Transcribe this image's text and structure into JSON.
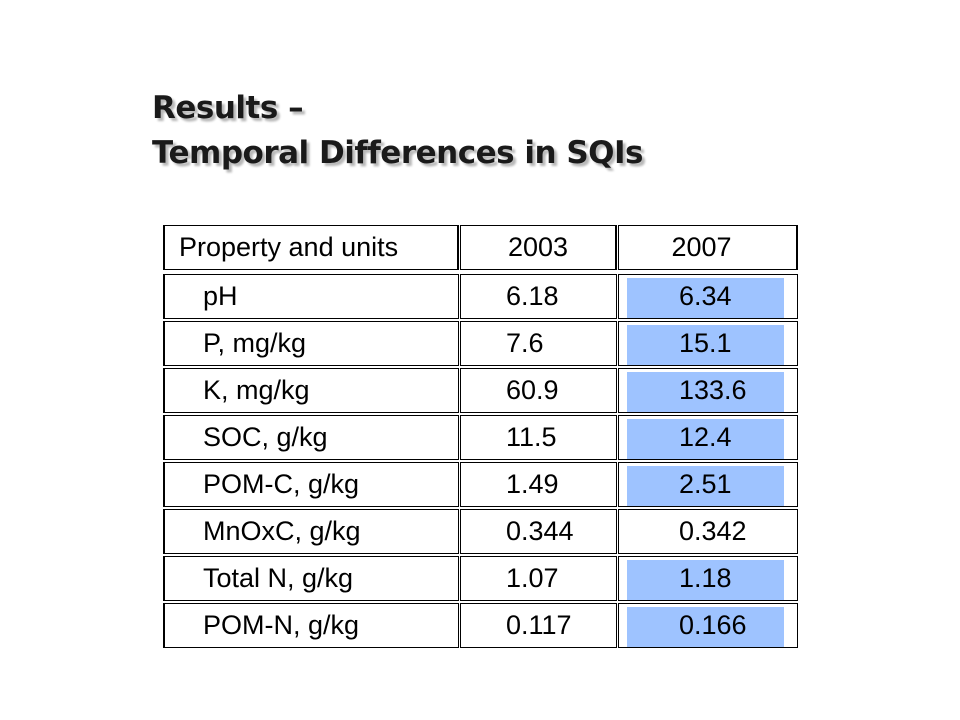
{
  "slide": {
    "title_line1": "Results –",
    "title_line2": "Temporal Differences in SQIs"
  },
  "table": {
    "headers": [
      "Property and units",
      "2003",
      "2007"
    ],
    "highlight_color": "#9ec3ff",
    "rows": [
      {
        "property": "pH",
        "y2003": "6.18",
        "y2007": "6.34",
        "highlighted": true
      },
      {
        "property": "P, mg/kg",
        "y2003": "7.6",
        "y2007": "15.1",
        "highlighted": true
      },
      {
        "property": "K, mg/kg",
        "y2003": "60.9",
        "y2007": "133.6",
        "highlighted": true
      },
      {
        "property": "SOC, g/kg",
        "y2003": "11.5",
        "y2007": "12.4",
        "highlighted": true
      },
      {
        "property": "POM-C, g/kg",
        "y2003": "1.49",
        "y2007": "2.51",
        "highlighted": true
      },
      {
        "property": "MnOxC, g/kg",
        "y2003": "0.344",
        "y2007": "0.342",
        "highlighted": false
      },
      {
        "property": "Total N, g/kg",
        "y2003": "1.07",
        "y2007": "1.18",
        "highlighted": true
      },
      {
        "property": "POM-N, g/kg",
        "y2003": "0.117",
        "y2007": "0.166",
        "highlighted": true
      }
    ]
  }
}
